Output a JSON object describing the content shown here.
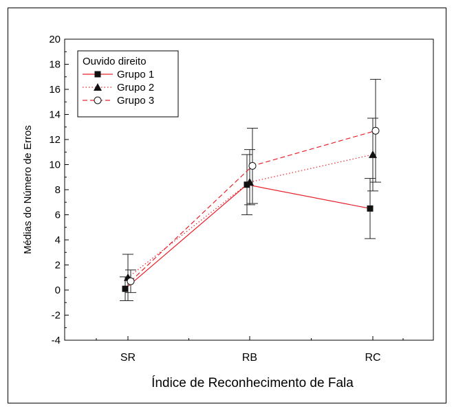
{
  "chart_data": {
    "type": "line",
    "title": "",
    "xlabel": "Índice de Reconhecimento de Fala",
    "ylabel": "Médias do Número de Erros",
    "categories": [
      "SR",
      "RB",
      "RC"
    ],
    "ylim": [
      -4,
      20
    ],
    "yticks": [
      "-4",
      "-2",
      "0",
      "2",
      "4",
      "6",
      "8",
      "10",
      "12",
      "14",
      "16",
      "18",
      "20"
    ],
    "grid": false,
    "legend": {
      "title": "Ouvido direito",
      "placement": "top-left"
    },
    "series": [
      {
        "name": "Grupo 1",
        "marker": "square",
        "line_style": "solid",
        "color": "#e8202a",
        "values": [
          0.1,
          8.4,
          6.5
        ],
        "err_low": [
          -0.85,
          6.0,
          4.1
        ],
        "err_high": [
          1.05,
          10.8,
          8.9
        ]
      },
      {
        "name": "Grupo 2",
        "marker": "triangle",
        "line_style": "dotted",
        "color": "#e8202a",
        "values": [
          1.0,
          8.6,
          10.8
        ],
        "err_low": [
          -0.85,
          6.8,
          7.9
        ],
        "err_high": [
          2.85,
          11.2,
          13.7
        ]
      },
      {
        "name": "Grupo 3",
        "marker": "circle-open",
        "line_style": "dashed",
        "color": "#e8202a",
        "values": [
          0.7,
          9.9,
          12.7
        ],
        "err_low": [
          -0.2,
          6.9,
          8.6
        ],
        "err_high": [
          1.6,
          12.9,
          16.8
        ]
      }
    ]
  }
}
